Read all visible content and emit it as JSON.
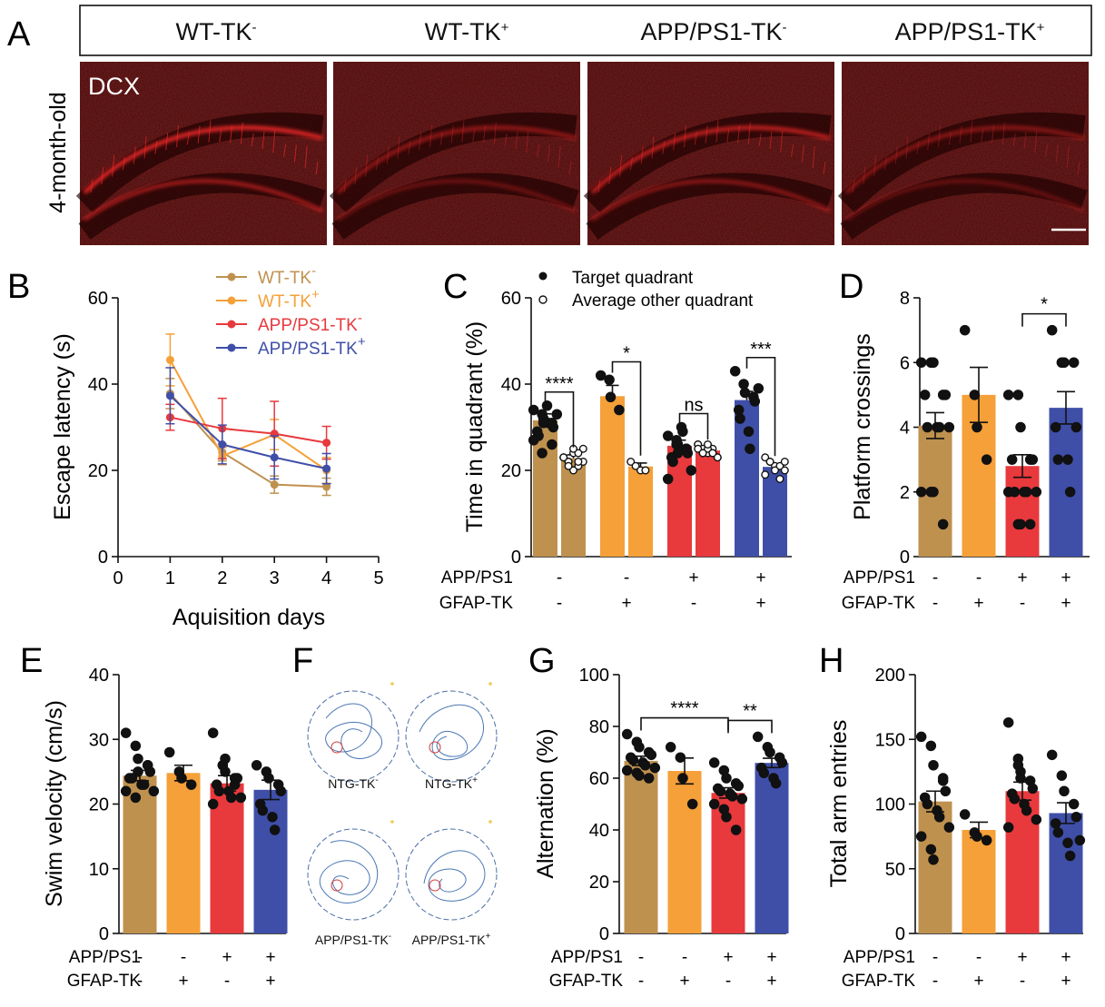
{
  "colors": {
    "wt_neg": "#BF914F",
    "wt_pos": "#F5A038",
    "app_neg": "#E8393D",
    "app_pos": "#3F4FA8",
    "micro_bg": "#3a0606",
    "micro_cell": "#ff2a2a"
  },
  "panel_a": {
    "letter": "A",
    "headers": [
      {
        "base": "WT-TK",
        "sup": "-"
      },
      {
        "base": "WT-TK",
        "sup": "+"
      },
      {
        "base": "APP/PS1-TK",
        "sup": "-"
      },
      {
        "base": "APP/PS1-TK",
        "sup": "+"
      }
    ],
    "side_label": "4-month-old",
    "stain_label": "DCX"
  },
  "cond_rows": {
    "row1": {
      "label": "APP/PS1",
      "signs": [
        "-",
        "-",
        "+",
        "+"
      ]
    },
    "row2": {
      "label": "GFAP-TK",
      "signs": [
        "-",
        "+",
        "-",
        "+"
      ]
    }
  },
  "panel_f": {
    "letter": "F",
    "labels": [
      {
        "base": "NTG-TK",
        "sup": "-"
      },
      {
        "base": "NTG-TK",
        "sup": "+"
      },
      {
        "base": "APP/PS1-TK",
        "sup": "-"
      },
      {
        "base": "APP/PS1-TK",
        "sup": "+"
      }
    ]
  },
  "chart_data": [
    {
      "panel": "B",
      "type": "line",
      "xlabel": "Aquisition days",
      "ylabel": "Escape latency (s)",
      "xlim": [
        0,
        5
      ],
      "ylim": [
        0,
        60
      ],
      "xticks": [
        0,
        1,
        2,
        3,
        4,
        5
      ],
      "yticks": [
        0,
        20,
        40,
        60
      ],
      "legend_position": "top-right",
      "series": [
        {
          "name": "WT-TK",
          "sup": "-",
          "color": "#BF914F",
          "x": [
            1,
            2,
            3,
            4
          ],
          "y": [
            37.8,
            24.2,
            16.7,
            16.2
          ],
          "err": [
            3.5,
            2.0,
            2.0,
            2.0
          ]
        },
        {
          "name": "WT-TK",
          "sup": "+",
          "color": "#F5A038",
          "x": [
            1,
            2,
            3,
            4
          ],
          "y": [
            45.6,
            23.3,
            28.3,
            20.0
          ],
          "err": [
            6.0,
            2.0,
            3.5,
            3.0
          ]
        },
        {
          "name": "APP/PS1-TK",
          "sup": "-",
          "color": "#E8393D",
          "x": [
            1,
            2,
            3,
            4
          ],
          "y": [
            32.3,
            29.7,
            28.5,
            26.4
          ],
          "err": [
            3.0,
            7.0,
            7.5,
            3.8
          ]
        },
        {
          "name": "APP/PS1-TK",
          "sup": "+",
          "color": "#3F4FA8",
          "x": [
            1,
            2,
            3,
            4
          ],
          "y": [
            37.3,
            26.0,
            23.0,
            20.4
          ],
          "err": [
            6.5,
            4.5,
            5.0,
            3.5
          ]
        }
      ]
    },
    {
      "panel": "C",
      "type": "bar",
      "ylabel": "Time in quadrant (%)",
      "ylim": [
        0,
        60
      ],
      "yticks": [
        0,
        20,
        40,
        60
      ],
      "legend": [
        "Target quadrant",
        "Average other quadrant"
      ],
      "groups": [
        {
          "color": "#BF914F",
          "target": 31.6,
          "target_err": 1.5,
          "other": 22.8,
          "other_err": 0.8,
          "target_points": [
            34,
            33,
            32,
            31,
            30,
            29,
            28,
            35,
            31,
            33,
            27,
            24,
            31,
            26
          ],
          "other_points": [
            23,
            22,
            24,
            21,
            25,
            23,
            22,
            20,
            24,
            22,
            23,
            21,
            25,
            22
          ]
        },
        {
          "color": "#F5A038",
          "target": 37.2,
          "target_err": 2.5,
          "other": 20.9,
          "other_err": 0.8,
          "target_points": [
            42,
            41,
            37,
            34
          ],
          "other_points": [
            22,
            21,
            20,
            20
          ]
        },
        {
          "color": "#E8393D",
          "target": 25.7,
          "target_err": 1.3,
          "other": 24.6,
          "other_err": 0.5,
          "target_points": [
            28,
            27,
            26,
            25,
            24,
            23,
            22,
            30,
            29,
            20,
            18,
            26,
            24,
            25
          ],
          "other_points": [
            26,
            25,
            24,
            25,
            23,
            26,
            24,
            25,
            24,
            23,
            25,
            24,
            26,
            24
          ]
        },
        {
          "color": "#3F4FA8",
          "target": 36.3,
          "target_err": 2.0,
          "other": 20.8,
          "other_err": 0.7,
          "target_points": [
            43,
            40,
            38,
            37,
            36,
            34,
            32,
            29,
            25,
            39
          ],
          "other_points": [
            23,
            22,
            21,
            21,
            20,
            19,
            22,
            20,
            18,
            22
          ]
        }
      ],
      "significance": [
        {
          "label": "****",
          "group": 0
        },
        {
          "label": "*",
          "group": 1
        },
        {
          "label": "ns",
          "group": 2
        },
        {
          "label": "***",
          "group": 3
        }
      ]
    },
    {
      "panel": "D",
      "type": "bar",
      "ylabel": "Platform crossings",
      "ylim": [
        0,
        8
      ],
      "yticks": [
        0,
        2,
        4,
        6,
        8
      ],
      "values": [
        4.05,
        5.0,
        2.8,
        4.6
      ],
      "errors": [
        0.4,
        0.85,
        0.35,
        0.5
      ],
      "colors": [
        "#BF914F",
        "#F5A038",
        "#E8393D",
        "#3F4FA8"
      ],
      "points": [
        [
          6,
          6,
          6,
          5,
          5,
          5,
          4,
          4,
          4,
          4,
          2,
          2,
          2,
          1
        ],
        [
          7,
          5,
          4,
          3
        ],
        [
          5,
          5,
          4,
          3,
          3,
          3,
          2,
          2,
          2,
          2,
          2,
          1,
          1,
          1
        ],
        [
          7,
          6,
          6,
          6,
          4,
          4,
          3,
          3,
          2
        ]
      ],
      "significance": [
        {
          "label": "*",
          "from": 2,
          "to": 3
        }
      ]
    },
    {
      "panel": "E",
      "type": "bar",
      "ylabel": "Swim velocity (cm/s)",
      "ylim": [
        0,
        40
      ],
      "yticks": [
        0,
        10,
        20,
        30,
        40
      ],
      "values": [
        24.4,
        24.8,
        23.2,
        22.2
      ],
      "errors": [
        0.8,
        1.2,
        1.2,
        1.5
      ],
      "colors": [
        "#BF914F",
        "#F5A038",
        "#E8393D",
        "#3F4FA8"
      ],
      "points": [
        [
          31,
          29,
          27,
          26,
          25,
          24,
          24,
          23,
          23,
          22,
          22,
          21,
          25,
          26
        ],
        [
          28,
          25,
          24,
          23
        ],
        [
          31,
          26,
          25,
          24,
          24,
          23,
          22,
          22,
          21,
          21,
          20,
          26,
          27,
          23
        ],
        [
          26,
          25,
          24,
          23,
          22,
          20,
          19,
          18,
          16
        ]
      ]
    },
    {
      "panel": "G",
      "type": "bar",
      "ylabel": "Alternation (%)",
      "ylim": [
        0,
        100
      ],
      "yticks": [
        0,
        20,
        40,
        60,
        80,
        100
      ],
      "values": [
        66.7,
        62.8,
        54.3,
        65.9
      ],
      "errors": [
        1.8,
        5.0,
        2.0,
        1.8
      ],
      "colors": [
        "#BF914F",
        "#F5A038",
        "#E8393D",
        "#3F4FA8"
      ],
      "points": [
        [
          77,
          74,
          72,
          70,
          69,
          68,
          67,
          66,
          65,
          64,
          63,
          62,
          61,
          60
        ],
        [
          72,
          68,
          60,
          50
        ],
        [
          66,
          63,
          60,
          58,
          57,
          56,
          55,
          54,
          53,
          52,
          50,
          48,
          45,
          40
        ],
        [
          76,
          72,
          70,
          68,
          66,
          64,
          62,
          60,
          58
        ]
      ],
      "significance": [
        {
          "label": "****",
          "from": 0,
          "to": 2
        },
        {
          "label": "**",
          "from": 2,
          "to": 3
        }
      ]
    },
    {
      "panel": "H",
      "type": "bar",
      "ylabel": "Total arm entries",
      "ylim": [
        0,
        200
      ],
      "yticks": [
        0,
        50,
        100,
        150,
        200
      ],
      "values": [
        102,
        80,
        110,
        93
      ],
      "errors": [
        8,
        6,
        7,
        8
      ],
      "colors": [
        "#BF914F",
        "#F5A038",
        "#E8393D",
        "#3F4FA8"
      ],
      "points": [
        [
          152,
          145,
          130,
          118,
          110,
          105,
          100,
          95,
          90,
          82,
          75,
          65,
          57,
          120
        ],
        [
          92,
          78,
          75,
          72
        ],
        [
          163,
          135,
          125,
          118,
          112,
          108,
          104,
          100,
          95,
          88,
          82,
          130,
          120
        ],
        [
          138,
          122,
          110,
          100,
          90,
          85,
          78,
          70,
          60,
          72
        ]
      ]
    }
  ]
}
